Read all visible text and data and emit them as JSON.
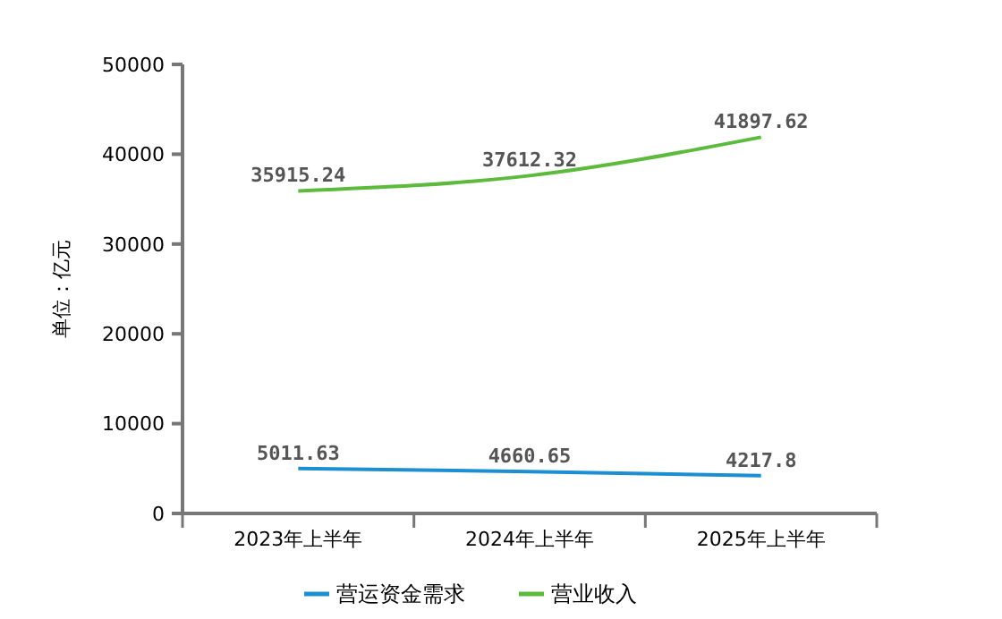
{
  "chart_data": {
    "type": "line",
    "ylabel": "单位：亿元",
    "categories": [
      "2023年上半年",
      "2024年上半年",
      "2025年上半年"
    ],
    "series": [
      {
        "name": "营运资金需求",
        "color": "#1c8fd3",
        "values": [
          5011.63,
          4660.65,
          4217.8
        ]
      },
      {
        "name": "营业收入",
        "color": "#5cba3c",
        "values": [
          35915.24,
          37612.32,
          41897.62
        ]
      }
    ],
    "ylim": [
      0,
      50000
    ],
    "yticks": [
      0,
      10000,
      20000,
      30000,
      40000,
      50000
    ],
    "grid": false,
    "legend": "bottom",
    "data_labels": true,
    "marker": "none",
    "line_style": "solid"
  }
}
